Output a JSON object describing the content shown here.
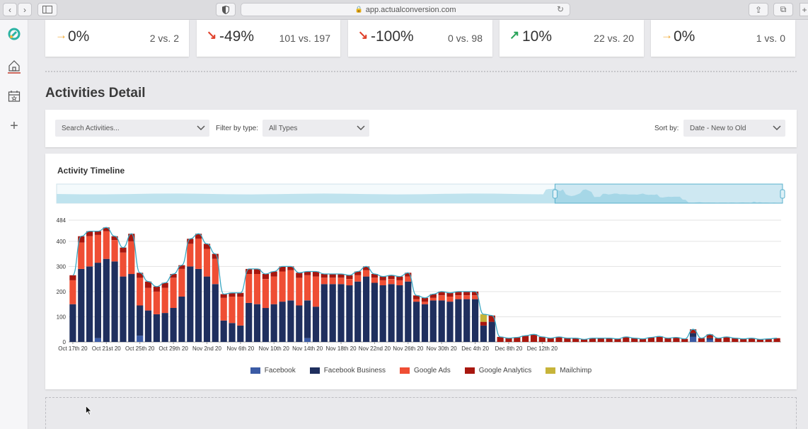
{
  "browser": {
    "url": "app.actualconversion.com"
  },
  "sidebar": {
    "items": [
      {
        "name": "logo",
        "icon": "logo-icon"
      },
      {
        "name": "home",
        "icon": "home-icon"
      },
      {
        "name": "calendar",
        "icon": "calendar-icon"
      },
      {
        "name": "add",
        "icon": "plus-icon"
      }
    ]
  },
  "stats": [
    {
      "arrow": "→",
      "arrow_color": "#f0a830",
      "pct": "0%",
      "vs": "2 vs. 2"
    },
    {
      "arrow": "↘",
      "arrow_color": "#e0402a",
      "pct": "-49%",
      "vs": "101 vs. 197"
    },
    {
      "arrow": "↘",
      "arrow_color": "#e0402a",
      "pct": "-100%",
      "vs": "0 vs. 98"
    },
    {
      "arrow": "↗",
      "arrow_color": "#2aa45a",
      "pct": "10%",
      "vs": "22 vs. 20"
    },
    {
      "arrow": "→",
      "arrow_color": "#f0a830",
      "pct": "0%",
      "vs": "1 vs. 0"
    }
  ],
  "section_title": "Activities Detail",
  "filters": {
    "search_placeholder": "Search Activities...",
    "filter_label": "Filter by type:",
    "filter_value": "All Types",
    "sort_label": "Sort by:",
    "sort_value": "Date - New to Old"
  },
  "chart_title": "Activity Timeline",
  "chart_data": {
    "type": "bar",
    "stacked": true,
    "y_max_label": "484",
    "ylim": [
      0,
      484
    ],
    "yticks": [
      0,
      100,
      200,
      300,
      400
    ],
    "x_tick_labels": [
      "Oct 17th 20",
      "Oct 21st 20",
      "Oct 25th 20",
      "Oct 29th 20",
      "Nov 2nd 20",
      "Nov 6th 20",
      "Nov 10th 20",
      "Nov 14th 20",
      "Nov 18th 20",
      "Nov 22nd 20",
      "Nov 26th 20",
      "Nov 30th 20",
      "Dec 4th 20",
      "Dec 8th 20",
      "Dec 12th 20"
    ],
    "colors": {
      "Facebook": "#3b5ba5",
      "Facebook Business": "#1f2f5e",
      "Google Ads": "#ef4e34",
      "Google Analytics": "#a8170f",
      "Mailchimp": "#c7b43a",
      "line": "#3aa7c3"
    },
    "series": [
      {
        "name": "Facebook",
        "values": [
          0,
          0,
          0,
          15,
          0,
          0,
          0,
          0,
          25,
          0,
          0,
          0,
          0,
          0,
          0,
          0,
          0,
          0,
          0,
          0,
          0,
          0,
          0,
          0,
          0,
          0,
          0,
          0,
          15,
          0,
          0,
          0,
          0,
          0,
          0,
          0,
          0,
          0,
          0,
          0,
          0,
          0,
          0,
          0,
          0,
          0,
          0,
          0,
          0,
          0,
          0,
          0,
          0,
          0,
          0,
          0,
          0,
          0,
          0,
          0,
          0,
          0,
          0,
          0,
          0,
          0,
          0,
          0,
          0,
          0,
          0,
          0,
          0,
          0,
          20,
          0,
          10,
          0,
          0,
          0,
          0,
          0,
          0,
          0,
          0
        ]
      },
      {
        "name": "Facebook Business",
        "values": [
          150,
          290,
          300,
          300,
          330,
          320,
          260,
          270,
          120,
          125,
          110,
          115,
          135,
          180,
          300,
          290,
          260,
          230,
          85,
          75,
          65,
          155,
          150,
          135,
          150,
          160,
          165,
          145,
          150,
          140,
          230,
          230,
          230,
          225,
          240,
          260,
          235,
          225,
          230,
          225,
          240,
          160,
          150,
          165,
          165,
          160,
          170,
          170,
          170,
          65,
          80,
          0,
          0,
          0,
          0,
          0,
          0,
          0,
          0,
          0,
          0,
          0,
          0,
          0,
          0,
          0,
          0,
          0,
          0,
          0,
          0,
          0,
          0,
          0,
          15,
          0,
          5,
          0,
          0,
          0,
          0,
          0,
          0,
          0,
          0
        ]
      },
      {
        "name": "Google Ads",
        "values": [
          95,
          105,
          120,
          110,
          110,
          85,
          95,
          130,
          110,
          90,
          90,
          100,
          120,
          110,
          90,
          120,
          110,
          100,
          90,
          105,
          115,
          115,
          120,
          115,
          110,
          120,
          120,
          110,
          100,
          120,
          25,
          25,
          25,
          25,
          25,
          25,
          20,
          20,
          20,
          20,
          20,
          10,
          10,
          10,
          20,
          20,
          15,
          15,
          15,
          0,
          0,
          0,
          0,
          0,
          0,
          0,
          0,
          0,
          0,
          0,
          0,
          0,
          0,
          0,
          0,
          0,
          0,
          0,
          0,
          0,
          0,
          0,
          0,
          0,
          0,
          0,
          0,
          0,
          0,
          0,
          0,
          0,
          0,
          0,
          0
        ]
      },
      {
        "name": "Google Analytics",
        "values": [
          20,
          25,
          20,
          15,
          15,
          15,
          20,
          30,
          20,
          25,
          20,
          20,
          15,
          15,
          20,
          20,
          20,
          20,
          15,
          15,
          15,
          20,
          20,
          20,
          20,
          20,
          15,
          20,
          15,
          20,
          15,
          15,
          15,
          15,
          15,
          15,
          15,
          15,
          15,
          15,
          15,
          15,
          15,
          15,
          15,
          15,
          15,
          15,
          15,
          15,
          25,
          20,
          15,
          18,
          25,
          30,
          20,
          15,
          20,
          15,
          15,
          10,
          15,
          15,
          15,
          12,
          20,
          15,
          12,
          18,
          22,
          15,
          18,
          12,
          15,
          15,
          15,
          15,
          20,
          15,
          12,
          15,
          10,
          12,
          15
        ]
      },
      {
        "name": "Mailchimp",
        "values": [
          0,
          0,
          0,
          0,
          0,
          0,
          0,
          0,
          0,
          0,
          0,
          0,
          0,
          0,
          0,
          0,
          0,
          0,
          0,
          0,
          0,
          0,
          0,
          0,
          0,
          0,
          0,
          0,
          0,
          0,
          0,
          0,
          0,
          0,
          0,
          0,
          0,
          0,
          0,
          0,
          0,
          0,
          0,
          0,
          0,
          0,
          0,
          0,
          0,
          30,
          0,
          0,
          0,
          0,
          0,
          0,
          0,
          0,
          0,
          0,
          0,
          0,
          0,
          0,
          0,
          0,
          0,
          0,
          0,
          0,
          0,
          0,
          0,
          0,
          0,
          0,
          0,
          0,
          0,
          0,
          0,
          0,
          0,
          0,
          0
        ]
      }
    ]
  },
  "legend": [
    {
      "label": "Facebook",
      "color": "#3b5ba5"
    },
    {
      "label": "Facebook Business",
      "color": "#1f2f5e"
    },
    {
      "label": "Google Ads",
      "color": "#ef4e34"
    },
    {
      "label": "Google Analytics",
      "color": "#a8170f"
    },
    {
      "label": "Mailchimp",
      "color": "#c7b43a"
    }
  ]
}
